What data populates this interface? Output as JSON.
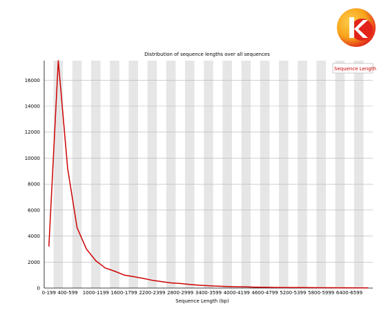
{
  "logo": {
    "icon": "kraken-logo-icon",
    "letter": "k",
    "colors": [
      "#f7a21b",
      "#e2231a"
    ]
  },
  "chart_data": {
    "type": "line",
    "title": "Distribution of sequence lengths over all sequences",
    "xlabel": "Sequence Length (bp)",
    "ylabel": "",
    "ylim": [
      0,
      17500
    ],
    "yticks": [
      0,
      2000,
      4000,
      6000,
      8000,
      10000,
      12000,
      14000,
      16000
    ],
    "categories": [
      "0-199",
      "200-399",
      "400-599",
      "600-799",
      "800-999",
      "1000-1199",
      "1200-1399",
      "1400-1599",
      "1600-1799",
      "1800-1999",
      "2000-2199",
      "2200-2399",
      "2400-2599",
      "2600-2799",
      "2800-2999",
      "3000-3199",
      "3200-3399",
      "3400-3599",
      "3600-3799",
      "3800-3999",
      "4000-4199",
      "4200-4399",
      "4400-4599",
      "4600-4799",
      "4800-4999",
      "5000-5199",
      "5200-5399",
      "5400-5599",
      "5600-5799",
      "5800-5999",
      "6000-6199",
      "6200-6399",
      "6400-6599",
      "6600-6799",
      "6800-6999"
    ],
    "shown_tick_labels": [
      "0-199",
      "400-599",
      "1000-1199",
      "1600-1799",
      "2200-2399",
      "2800-2999",
      "3400-3599",
      "4000-4199",
      "4600-4799",
      "5200-5399",
      "5800-5999",
      "6400-6599"
    ],
    "series": [
      {
        "name": "Sequence Length",
        "color": "#cc0000",
        "values": [
          3200,
          17500,
          9200,
          4650,
          3000,
          2100,
          1550,
          1300,
          1000,
          880,
          750,
          600,
          500,
          400,
          350,
          280,
          220,
          180,
          150,
          120,
          100,
          90,
          70,
          60,
          50,
          45,
          40,
          35,
          30,
          28,
          25,
          22,
          20,
          18,
          15
        ]
      }
    ],
    "grid": true,
    "legend": "top-right",
    "band_color": "#e6e6e6",
    "grid_color": "#b4b4b4"
  }
}
